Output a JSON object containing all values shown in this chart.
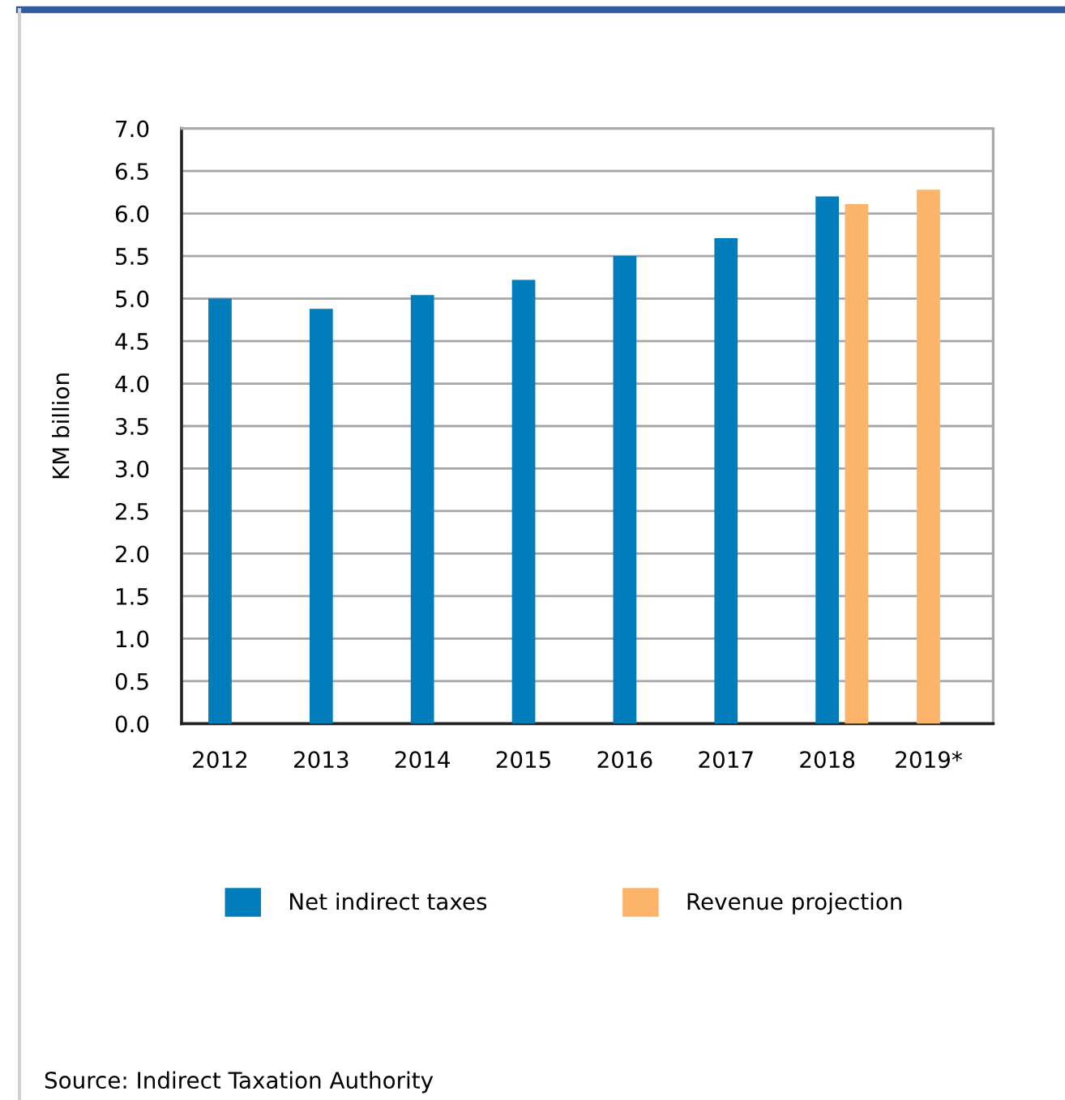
{
  "chart_data": {
    "type": "bar",
    "ylabel": "KM billion",
    "categories": [
      "2012",
      "2013",
      "2014",
      "2015",
      "2016",
      "2017",
      "2018",
      "2019*"
    ],
    "series": [
      {
        "name": "Net indirect taxes",
        "color": "#007dba",
        "values": [
          5.0,
          4.88,
          5.04,
          5.22,
          5.5,
          5.71,
          6.2,
          null
        ]
      },
      {
        "name": "Revenue projection",
        "color": "#fbb469",
        "values": [
          null,
          null,
          null,
          null,
          null,
          null,
          6.11,
          6.28
        ]
      }
    ],
    "ylim": [
      0,
      7
    ],
    "yticks": [
      {
        "value": 0,
        "label": "0.0"
      },
      {
        "value": 0.5,
        "label": "0.5"
      },
      {
        "value": 1,
        "label": "1.0"
      },
      {
        "value": 1.5,
        "label": "1.5"
      },
      {
        "value": 2,
        "label": "2.0"
      },
      {
        "value": 2.5,
        "label": "2.5"
      },
      {
        "value": 3,
        "label": "3.0"
      },
      {
        "value": 3.5,
        "label": "3.5"
      },
      {
        "value": 4,
        "label": "4.0"
      },
      {
        "value": 4.5,
        "label": "4.5"
      },
      {
        "value": 5,
        "label": "5.0"
      },
      {
        "value": 5.5,
        "label": "5.5"
      },
      {
        "value": 6,
        "label": "6.0"
      },
      {
        "value": 6.5,
        "label": "6.5"
      },
      {
        "value": 7,
        "label": "7.0"
      }
    ],
    "grid": "y",
    "legend": "bottom",
    "annotations": [
      "Source: Indirect Taxation Authority"
    ]
  }
}
